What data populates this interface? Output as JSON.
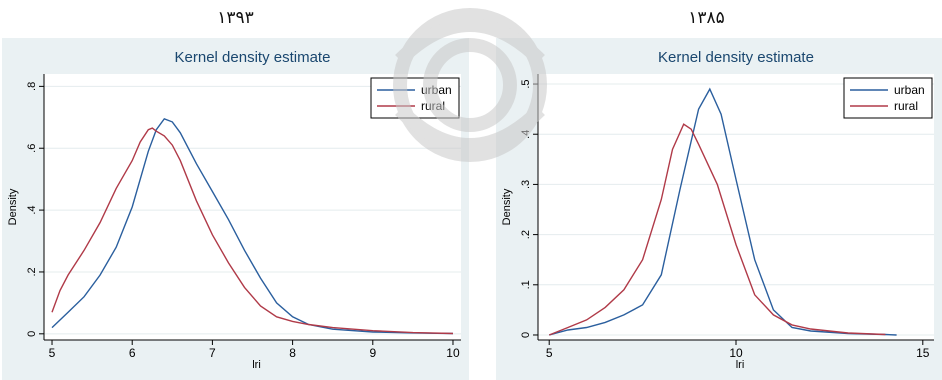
{
  "chart_data": [
    {
      "type": "line",
      "panel_label": "۱۳۹۳",
      "title": "Kernel density estimate",
      "xlabel": "lri",
      "ylabel": "Density",
      "xlim": [
        4.9,
        10.1
      ],
      "ylim": [
        -0.02,
        0.84
      ],
      "xticks": [
        5,
        6,
        7,
        8,
        9,
        10
      ],
      "yticks": [
        0,
        0.2,
        0.4,
        0.6,
        0.8
      ],
      "ytick_labels": [
        "0",
        ".2",
        ".4",
        ".6",
        ".8"
      ],
      "grid": true,
      "legend_position": "top-right",
      "series": [
        {
          "name": "urban",
          "color": "#2b5f9e",
          "x": [
            5.0,
            5.2,
            5.4,
            5.6,
            5.8,
            6.0,
            6.2,
            6.3,
            6.4,
            6.5,
            6.6,
            6.8,
            7.0,
            7.2,
            7.4,
            7.6,
            7.8,
            8.0,
            8.2,
            8.5,
            9.0,
            9.5,
            10.0
          ],
          "y": [
            0.02,
            0.07,
            0.12,
            0.19,
            0.28,
            0.41,
            0.59,
            0.66,
            0.695,
            0.685,
            0.65,
            0.55,
            0.46,
            0.37,
            0.27,
            0.18,
            0.1,
            0.055,
            0.03,
            0.015,
            0.006,
            0.003,
            0.001
          ]
        },
        {
          "name": "rural",
          "color": "#b03a48",
          "x": [
            5.0,
            5.1,
            5.2,
            5.4,
            5.6,
            5.8,
            6.0,
            6.1,
            6.2,
            6.25,
            6.3,
            6.4,
            6.5,
            6.6,
            6.8,
            7.0,
            7.2,
            7.4,
            7.6,
            7.8,
            8.0,
            8.2,
            8.5,
            9.0,
            9.5,
            10.0
          ],
          "y": [
            0.07,
            0.14,
            0.19,
            0.27,
            0.36,
            0.47,
            0.56,
            0.62,
            0.66,
            0.665,
            0.655,
            0.64,
            0.61,
            0.56,
            0.43,
            0.32,
            0.23,
            0.15,
            0.09,
            0.055,
            0.04,
            0.03,
            0.02,
            0.01,
            0.004,
            0.001
          ]
        }
      ]
    },
    {
      "type": "line",
      "panel_label": "۱۳۸۵",
      "title": "Kernel density estimate",
      "xlabel": "lri",
      "ylabel": "Density",
      "xlim": [
        4.7,
        15.3
      ],
      "ylim": [
        -0.01,
        0.52
      ],
      "xticks": [
        5,
        10,
        15
      ],
      "yticks": [
        0,
        0.1,
        0.2,
        0.3,
        0.4,
        0.5
      ],
      "ytick_labels": [
        "0",
        ".1",
        ".2",
        ".3",
        ".4",
        ".5"
      ],
      "grid": true,
      "legend_position": "top-right",
      "series": [
        {
          "name": "urban",
          "color": "#2b5f9e",
          "x": [
            5.0,
            5.5,
            6.0,
            6.5,
            7.0,
            7.5,
            8.0,
            8.5,
            9.0,
            9.3,
            9.6,
            10.0,
            10.5,
            11.0,
            11.5,
            12.0,
            13.0,
            14.0,
            14.3
          ],
          "y": [
            0.0,
            0.01,
            0.015,
            0.025,
            0.04,
            0.06,
            0.12,
            0.29,
            0.45,
            0.49,
            0.44,
            0.31,
            0.15,
            0.05,
            0.015,
            0.008,
            0.003,
            0.001,
            0.0
          ]
        },
        {
          "name": "rural",
          "color": "#b03a48",
          "x": [
            5.0,
            5.5,
            6.0,
            6.5,
            7.0,
            7.5,
            8.0,
            8.3,
            8.6,
            8.8,
            9.0,
            9.5,
            10.0,
            10.5,
            11.0,
            11.5,
            12.0,
            13.0,
            14.0
          ],
          "y": [
            0.0,
            0.015,
            0.03,
            0.055,
            0.09,
            0.15,
            0.27,
            0.37,
            0.42,
            0.41,
            0.38,
            0.3,
            0.18,
            0.08,
            0.04,
            0.02,
            0.012,
            0.004,
            0.001
          ]
        }
      ]
    }
  ]
}
